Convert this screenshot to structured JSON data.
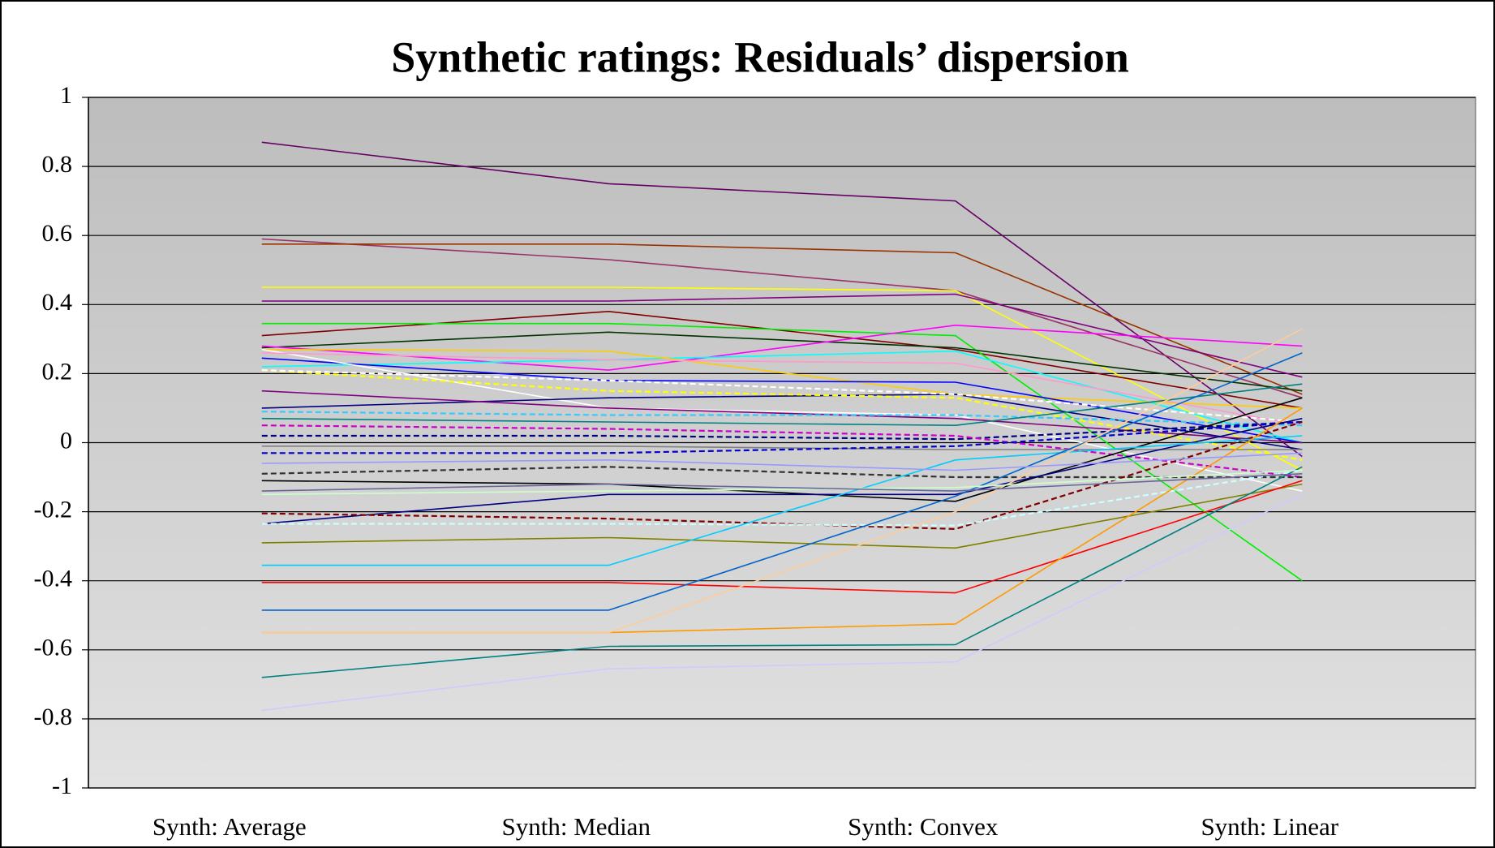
{
  "chart_data": {
    "type": "line",
    "title": "Synthetic ratings: Residuals’ dispersion",
    "categories": [
      "Synth: Average",
      "Synth: Median",
      "Synth: Convex",
      "Synth: Linear"
    ],
    "ylim": [
      -1,
      1
    ],
    "yticks": [
      -1,
      -0.8,
      -0.6,
      -0.4,
      -0.2,
      0,
      0.2,
      0.4,
      0.6,
      0.8,
      1
    ],
    "grid": true,
    "series": [
      {
        "color": "#660066",
        "values": [
          0.87,
          0.75,
          0.7,
          -0.04
        ]
      },
      {
        "color": "#993366",
        "values": [
          0.59,
          0.53,
          0.44,
          0.13
        ]
      },
      {
        "color": "#993300",
        "values": [
          0.575,
          0.575,
          0.55,
          0.14
        ]
      },
      {
        "color": "#ffff00",
        "values": [
          0.45,
          0.45,
          0.44,
          -0.08
        ]
      },
      {
        "color": "#800080",
        "values": [
          0.41,
          0.41,
          0.43,
          0.19
        ]
      },
      {
        "color": "#800000",
        "values": [
          0.31,
          0.38,
          0.27,
          0.1
        ]
      },
      {
        "color": "#00ee00",
        "values": [
          0.345,
          0.345,
          0.31,
          -0.4
        ]
      },
      {
        "color": "#003300",
        "values": [
          0.275,
          0.32,
          0.275,
          0.15
        ]
      },
      {
        "color": "#ff00ff",
        "values": [
          0.28,
          0.21,
          0.34,
          0.28
        ]
      },
      {
        "color": "#00ffff",
        "values": [
          0.22,
          0.24,
          0.265,
          0.0
        ]
      },
      {
        "color": "#ffcc00",
        "values": [
          0.27,
          0.265,
          0.14,
          0.1
        ]
      },
      {
        "color": "#0000ff",
        "values": [
          0.245,
          0.18,
          0.175,
          0.0
        ]
      },
      {
        "color": "#ffffff",
        "values": [
          0.27,
          0.1,
          0.08,
          -0.14
        ]
      },
      {
        "color": "#000080",
        "values": [
          0.1,
          0.13,
          0.14,
          -0.02
        ]
      },
      {
        "color": "#800080",
        "values": [
          0.15,
          0.1,
          0.07,
          0.0
        ]
      },
      {
        "color": "#ff99cc",
        "values": [
          0.26,
          0.24,
          0.23,
          0.05
        ]
      },
      {
        "color": "#ffff00",
        "dashed": true,
        "values": [
          0.21,
          0.15,
          0.13,
          -0.05
        ]
      },
      {
        "color": "#ffffff",
        "dashed": true,
        "values": [
          0.21,
          0.18,
          0.14,
          0.06
        ]
      },
      {
        "color": "#33ccff",
        "dashed": true,
        "values": [
          0.09,
          0.08,
          0.08,
          0.05
        ]
      },
      {
        "color": "#008080",
        "values": [
          0.07,
          0.06,
          0.05,
          0.17
        ]
      },
      {
        "color": "#000080",
        "dashed": true,
        "values": [
          0.02,
          0.02,
          0.01,
          0.06
        ]
      },
      {
        "color": "#cc00cc",
        "dashed": true,
        "values": [
          0.05,
          0.04,
          0.02,
          -0.1
        ]
      },
      {
        "color": "#808080",
        "values": [
          -0.01,
          -0.01,
          -0.02,
          -0.02
        ]
      },
      {
        "color": "#0000cc",
        "dashed": true,
        "values": [
          -0.03,
          -0.03,
          -0.01,
          0.06
        ]
      },
      {
        "color": "#333333",
        "dashed": true,
        "values": [
          -0.09,
          -0.07,
          -0.1,
          -0.1
        ]
      },
      {
        "color": "#000000",
        "values": [
          -0.11,
          -0.12,
          -0.17,
          0.13
        ]
      },
      {
        "color": "#000080",
        "values": [
          -0.235,
          -0.15,
          -0.15,
          0.07
        ]
      },
      {
        "color": "#800000",
        "dashed": true,
        "values": [
          -0.205,
          -0.22,
          -0.25,
          0.06
        ]
      },
      {
        "color": "#ccffff",
        "dashed": true,
        "values": [
          -0.235,
          -0.235,
          -0.24,
          -0.08
        ]
      },
      {
        "color": "#808000",
        "values": [
          -0.29,
          -0.275,
          -0.305,
          -0.12
        ]
      },
      {
        "color": "#00ccff",
        "values": [
          -0.355,
          -0.355,
          -0.05,
          0.02
        ]
      },
      {
        "color": "#ff0000",
        "values": [
          -0.405,
          -0.405,
          -0.435,
          -0.11
        ]
      },
      {
        "color": "#0066cc",
        "values": [
          -0.485,
          -0.485,
          -0.155,
          0.26
        ]
      },
      {
        "color": "#ff9900",
        "values": [
          -0.55,
          -0.55,
          -0.525,
          0.1
        ]
      },
      {
        "color": "#ffcc99",
        "values": [
          -0.55,
          -0.55,
          -0.2,
          0.33
        ]
      },
      {
        "color": "#008080",
        "values": [
          -0.68,
          -0.59,
          -0.585,
          -0.07
        ]
      },
      {
        "color": "#ccccff",
        "values": [
          -0.775,
          -0.655,
          -0.635,
          -0.15
        ]
      },
      {
        "color": "#ccffcc",
        "values": [
          -0.15,
          -0.14,
          -0.13,
          -0.08
        ]
      },
      {
        "color": "#9999ff",
        "values": [
          -0.06,
          -0.05,
          -0.08,
          -0.03
        ]
      },
      {
        "color": "#666699",
        "values": [
          -0.14,
          -0.12,
          -0.14,
          -0.09
        ]
      }
    ]
  }
}
